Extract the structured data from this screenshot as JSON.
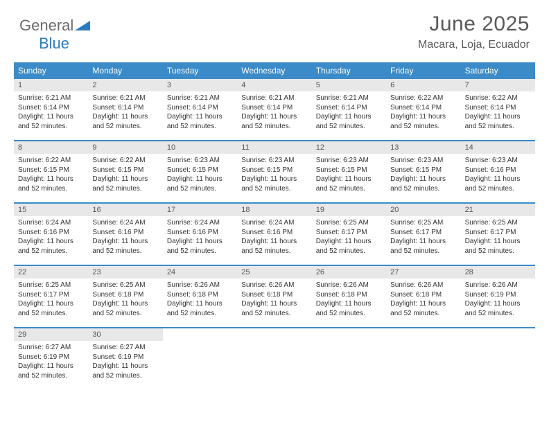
{
  "brand": {
    "part1": "General",
    "part2": "Blue"
  },
  "title": "June 2025",
  "location": "Macara, Loja, Ecuador",
  "colors": {
    "header_bar": "#3b8bc8",
    "day_num_bg": "#e8e8e8",
    "text_gray": "#595959",
    "brand_blue": "#2b7bbf"
  },
  "typography": {
    "title_fontsize": 30,
    "location_fontsize": 16,
    "dayheader_fontsize": 12,
    "body_fontsize": 10
  },
  "calendar": {
    "day_names": [
      "Sunday",
      "Monday",
      "Tuesday",
      "Wednesday",
      "Thursday",
      "Friday",
      "Saturday"
    ],
    "first_weekday_offset": 0,
    "days": [
      {
        "n": 1,
        "sunrise": "6:21 AM",
        "sunset": "6:14 PM",
        "daylight": "11 hours and 52 minutes."
      },
      {
        "n": 2,
        "sunrise": "6:21 AM",
        "sunset": "6:14 PM",
        "daylight": "11 hours and 52 minutes."
      },
      {
        "n": 3,
        "sunrise": "6:21 AM",
        "sunset": "6:14 PM",
        "daylight": "11 hours and 52 minutes."
      },
      {
        "n": 4,
        "sunrise": "6:21 AM",
        "sunset": "6:14 PM",
        "daylight": "11 hours and 52 minutes."
      },
      {
        "n": 5,
        "sunrise": "6:21 AM",
        "sunset": "6:14 PM",
        "daylight": "11 hours and 52 minutes."
      },
      {
        "n": 6,
        "sunrise": "6:22 AM",
        "sunset": "6:14 PM",
        "daylight": "11 hours and 52 minutes."
      },
      {
        "n": 7,
        "sunrise": "6:22 AM",
        "sunset": "6:14 PM",
        "daylight": "11 hours and 52 minutes."
      },
      {
        "n": 8,
        "sunrise": "6:22 AM",
        "sunset": "6:15 PM",
        "daylight": "11 hours and 52 minutes."
      },
      {
        "n": 9,
        "sunrise": "6:22 AM",
        "sunset": "6:15 PM",
        "daylight": "11 hours and 52 minutes."
      },
      {
        "n": 10,
        "sunrise": "6:23 AM",
        "sunset": "6:15 PM",
        "daylight": "11 hours and 52 minutes."
      },
      {
        "n": 11,
        "sunrise": "6:23 AM",
        "sunset": "6:15 PM",
        "daylight": "11 hours and 52 minutes."
      },
      {
        "n": 12,
        "sunrise": "6:23 AM",
        "sunset": "6:15 PM",
        "daylight": "11 hours and 52 minutes."
      },
      {
        "n": 13,
        "sunrise": "6:23 AM",
        "sunset": "6:15 PM",
        "daylight": "11 hours and 52 minutes."
      },
      {
        "n": 14,
        "sunrise": "6:23 AM",
        "sunset": "6:16 PM",
        "daylight": "11 hours and 52 minutes."
      },
      {
        "n": 15,
        "sunrise": "6:24 AM",
        "sunset": "6:16 PM",
        "daylight": "11 hours and 52 minutes."
      },
      {
        "n": 16,
        "sunrise": "6:24 AM",
        "sunset": "6:16 PM",
        "daylight": "11 hours and 52 minutes."
      },
      {
        "n": 17,
        "sunrise": "6:24 AM",
        "sunset": "6:16 PM",
        "daylight": "11 hours and 52 minutes."
      },
      {
        "n": 18,
        "sunrise": "6:24 AM",
        "sunset": "6:16 PM",
        "daylight": "11 hours and 52 minutes."
      },
      {
        "n": 19,
        "sunrise": "6:25 AM",
        "sunset": "6:17 PM",
        "daylight": "11 hours and 52 minutes."
      },
      {
        "n": 20,
        "sunrise": "6:25 AM",
        "sunset": "6:17 PM",
        "daylight": "11 hours and 52 minutes."
      },
      {
        "n": 21,
        "sunrise": "6:25 AM",
        "sunset": "6:17 PM",
        "daylight": "11 hours and 52 minutes."
      },
      {
        "n": 22,
        "sunrise": "6:25 AM",
        "sunset": "6:17 PM",
        "daylight": "11 hours and 52 minutes."
      },
      {
        "n": 23,
        "sunrise": "6:25 AM",
        "sunset": "6:18 PM",
        "daylight": "11 hours and 52 minutes."
      },
      {
        "n": 24,
        "sunrise": "6:26 AM",
        "sunset": "6:18 PM",
        "daylight": "11 hours and 52 minutes."
      },
      {
        "n": 25,
        "sunrise": "6:26 AM",
        "sunset": "6:18 PM",
        "daylight": "11 hours and 52 minutes."
      },
      {
        "n": 26,
        "sunrise": "6:26 AM",
        "sunset": "6:18 PM",
        "daylight": "11 hours and 52 minutes."
      },
      {
        "n": 27,
        "sunrise": "6:26 AM",
        "sunset": "6:18 PM",
        "daylight": "11 hours and 52 minutes."
      },
      {
        "n": 28,
        "sunrise": "6:26 AM",
        "sunset": "6:19 PM",
        "daylight": "11 hours and 52 minutes."
      },
      {
        "n": 29,
        "sunrise": "6:27 AM",
        "sunset": "6:19 PM",
        "daylight": "11 hours and 52 minutes."
      },
      {
        "n": 30,
        "sunrise": "6:27 AM",
        "sunset": "6:19 PM",
        "daylight": "11 hours and 52 minutes."
      }
    ],
    "labels": {
      "sunrise_prefix": "Sunrise: ",
      "sunset_prefix": "Sunset: ",
      "daylight_prefix": "Daylight: "
    }
  }
}
